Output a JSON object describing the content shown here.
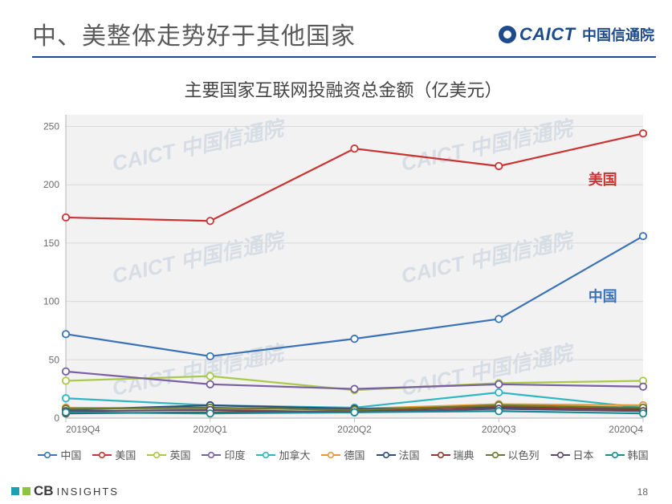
{
  "slide": {
    "title": "中、美整体走势好于其他国家",
    "page_number": 18,
    "caict_en": "CAICT",
    "caict_cn": "中国信通院",
    "cb_logo_a": "CB",
    "cb_logo_b": "INSIGHTS"
  },
  "chart": {
    "type": "line",
    "title": "主要国家互联网投融资总金额（亿美元）",
    "title_fontsize": 22,
    "title_color": "#444444",
    "background_color": "#ffffff",
    "plot_background_color": "#f2f2f2",
    "grid_color": "#d9d9d9",
    "axis_line_color": "#bfbfbf",
    "axis_label_color": "#6b6b6b",
    "axis_label_fontsize": 12,
    "x_categories": [
      "2019Q4",
      "2020Q1",
      "2020Q2",
      "2020Q3",
      "2020Q4"
    ],
    "ylim": [
      0,
      260
    ],
    "yticks": [
      0,
      50,
      100,
      150,
      200,
      250
    ],
    "line_width": 2.2,
    "marker_size": 4.2,
    "legend_position": "bottom",
    "annotations": [
      {
        "label": "美国",
        "x_index": 3.62,
        "y": 200,
        "color": "#cc3333",
        "fontsize": 18
      },
      {
        "label": "中国",
        "x_index": 3.62,
        "y": 100,
        "color": "#3b72b8",
        "fontsize": 18
      }
    ],
    "watermark_text": "CAICT 中国信通院",
    "series": [
      {
        "name": "中国",
        "color": "#3b72b8",
        "values": [
          72,
          53,
          68,
          85,
          156
        ]
      },
      {
        "name": "美国",
        "color": "#cc3333",
        "values": [
          172,
          169,
          231,
          216,
          244
        ]
      },
      {
        "name": "英国",
        "color": "#a8c94a",
        "values": [
          32,
          36,
          24,
          30,
          32
        ]
      },
      {
        "name": "印度",
        "color": "#7a5fa3",
        "values": [
          40,
          29,
          25,
          29,
          27
        ]
      },
      {
        "name": "加拿大",
        "color": "#2fb6c4",
        "values": [
          17,
          11,
          9,
          22,
          9
        ]
      },
      {
        "name": "德国",
        "color": "#e49a3c",
        "values": [
          9,
          8,
          8,
          12,
          11
        ]
      },
      {
        "name": "法国",
        "color": "#2d4e7a",
        "values": [
          7,
          11,
          8,
          9,
          8
        ]
      },
      {
        "name": "瑞典",
        "color": "#8a3b2a",
        "values": [
          4,
          5,
          6,
          10,
          7
        ]
      },
      {
        "name": "以色列",
        "color": "#6b7a2a",
        "values": [
          8,
          9,
          7,
          11,
          9
        ]
      },
      {
        "name": "日本",
        "color": "#5a4a6b",
        "values": [
          6,
          7,
          5,
          8,
          6
        ]
      },
      {
        "name": "韩国",
        "color": "#1b8a94",
        "values": [
          5,
          4,
          5,
          6,
          4
        ]
      }
    ]
  }
}
